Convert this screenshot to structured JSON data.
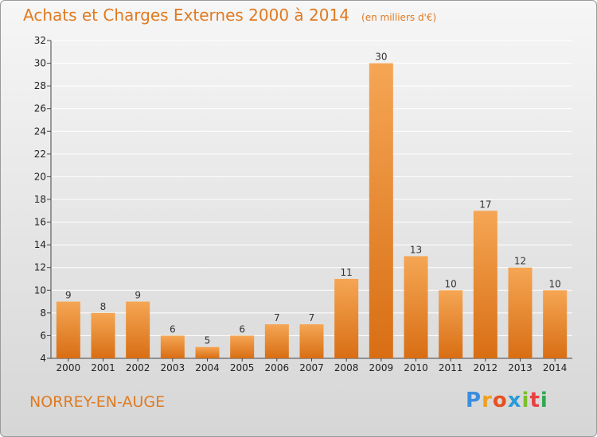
{
  "title": "Achats et Charges Externes 2000 à 2014",
  "subtitle": "(en milliers d'€)",
  "town": "NORREY-EN-AUGE",
  "brand": [
    "P",
    "r",
    "o",
    "x",
    "i",
    "t",
    "i"
  ],
  "colors": {
    "bar_light": "#f5a654",
    "bar_dark": "#d86e14",
    "title": "#e07a20",
    "grid": "#ffffff"
  },
  "chart_data": {
    "type": "bar",
    "title": "Achats et Charges Externes 2000 à 2014",
    "subtitle": "(en milliers d'€)",
    "categories": [
      "2000",
      "2001",
      "2002",
      "2003",
      "2004",
      "2005",
      "2006",
      "2007",
      "2008",
      "2009",
      "2010",
      "2011",
      "2012",
      "2013",
      "2014"
    ],
    "values": [
      9,
      8,
      9,
      6,
      5,
      6,
      7,
      7,
      11,
      30,
      13,
      10,
      17,
      12,
      10
    ],
    "ylim": [
      4,
      32
    ],
    "yticks": [
      4,
      6,
      8,
      10,
      12,
      14,
      16,
      18,
      20,
      22,
      24,
      26,
      28,
      30,
      32
    ],
    "grid": true,
    "xlabel": "",
    "ylabel": ""
  }
}
